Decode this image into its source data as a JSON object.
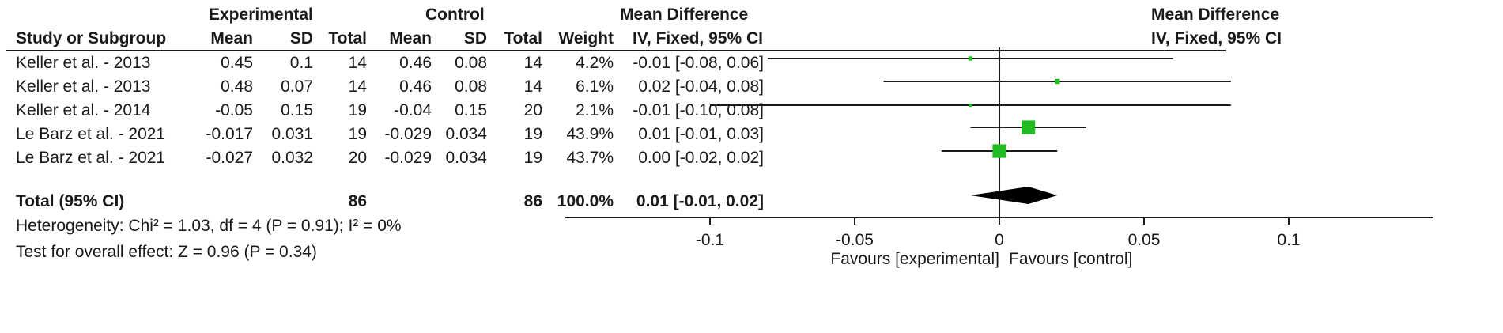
{
  "headers": {
    "experimental": "Experimental",
    "control": "Control",
    "mean_difference": "Mean Difference",
    "study": "Study or Subgroup",
    "mean": "Mean",
    "sd": "SD",
    "total": "Total",
    "weight": "Weight",
    "method": "IV, Fixed, 95% CI"
  },
  "studies": [
    {
      "name": "Keller et al. - 2013",
      "e_mean": "0.45",
      "e_sd": "0.1",
      "e_total": "14",
      "c_mean": "0.46",
      "c_sd": "0.08",
      "c_total": "14",
      "weight": "4.2%",
      "ci_text": "-0.01 [-0.08, 0.06]"
    },
    {
      "name": "Keller et al. - 2013",
      "e_mean": "0.48",
      "e_sd": "0.07",
      "e_total": "14",
      "c_mean": "0.46",
      "c_sd": "0.08",
      "c_total": "14",
      "weight": "6.1%",
      "ci_text": "0.02 [-0.04, 0.08]"
    },
    {
      "name": "Keller et al. - 2014",
      "e_mean": "-0.05",
      "e_sd": "0.15",
      "e_total": "19",
      "c_mean": "-0.04",
      "c_sd": "0.15",
      "c_total": "20",
      "weight": "2.1%",
      "ci_text": "-0.01 [-0.10, 0.08]"
    },
    {
      "name": "Le Barz et al. - 2021",
      "e_mean": "-0.017",
      "e_sd": "0.031",
      "e_total": "19",
      "c_mean": "-0.029",
      "c_sd": "0.034",
      "c_total": "19",
      "weight": "43.9%",
      "ci_text": "0.01 [-0.01, 0.03]"
    },
    {
      "name": "Le Barz et al. - 2021",
      "e_mean": "-0.027",
      "e_sd": "0.032",
      "e_total": "20",
      "c_mean": "-0.029",
      "c_sd": "0.034",
      "c_total": "19",
      "weight": "43.7%",
      "ci_text": "0.00 [-0.02, 0.02]"
    }
  ],
  "total": {
    "label": "Total (95% CI)",
    "e_total": "86",
    "c_total": "86",
    "weight": "100.0%",
    "ci_text": "0.01 [-0.01, 0.02]"
  },
  "heterogeneity": "Heterogeneity: Chi² = 1.03, df = 4 (P = 0.91); I² = 0%",
  "overall_effect": "Test for overall effect: Z = 0.96 (P = 0.34)",
  "favours_left": "Favours [experimental]",
  "favours_right": "Favours [control]",
  "colors": {
    "marker": "#22bb22",
    "diamond": "#000000",
    "line": "#1a1a1a"
  },
  "chart_data": {
    "type": "forest",
    "title": "Mean Difference",
    "subtitle": "IV, Fixed, 95% CI",
    "xlim": [
      -0.15,
      0.15
    ],
    "xticks": [
      -0.1,
      -0.05,
      0,
      0.05,
      0.1
    ],
    "xtick_labels": [
      "-0.1",
      "-0.05",
      "0",
      "0.05",
      "0.1"
    ],
    "points": [
      {
        "mean": -0.01,
        "lower": -0.08,
        "upper": 0.06,
        "weight": 4.2
      },
      {
        "mean": 0.02,
        "lower": -0.04,
        "upper": 0.08,
        "weight": 6.1
      },
      {
        "mean": -0.01,
        "lower": -0.1,
        "upper": 0.08,
        "weight": 2.1
      },
      {
        "mean": 0.01,
        "lower": -0.01,
        "upper": 0.03,
        "weight": 43.9
      },
      {
        "mean": 0.0,
        "lower": -0.02,
        "upper": 0.02,
        "weight": 43.7
      }
    ],
    "pooled": {
      "mean": 0.01,
      "lower": -0.01,
      "upper": 0.02
    }
  }
}
